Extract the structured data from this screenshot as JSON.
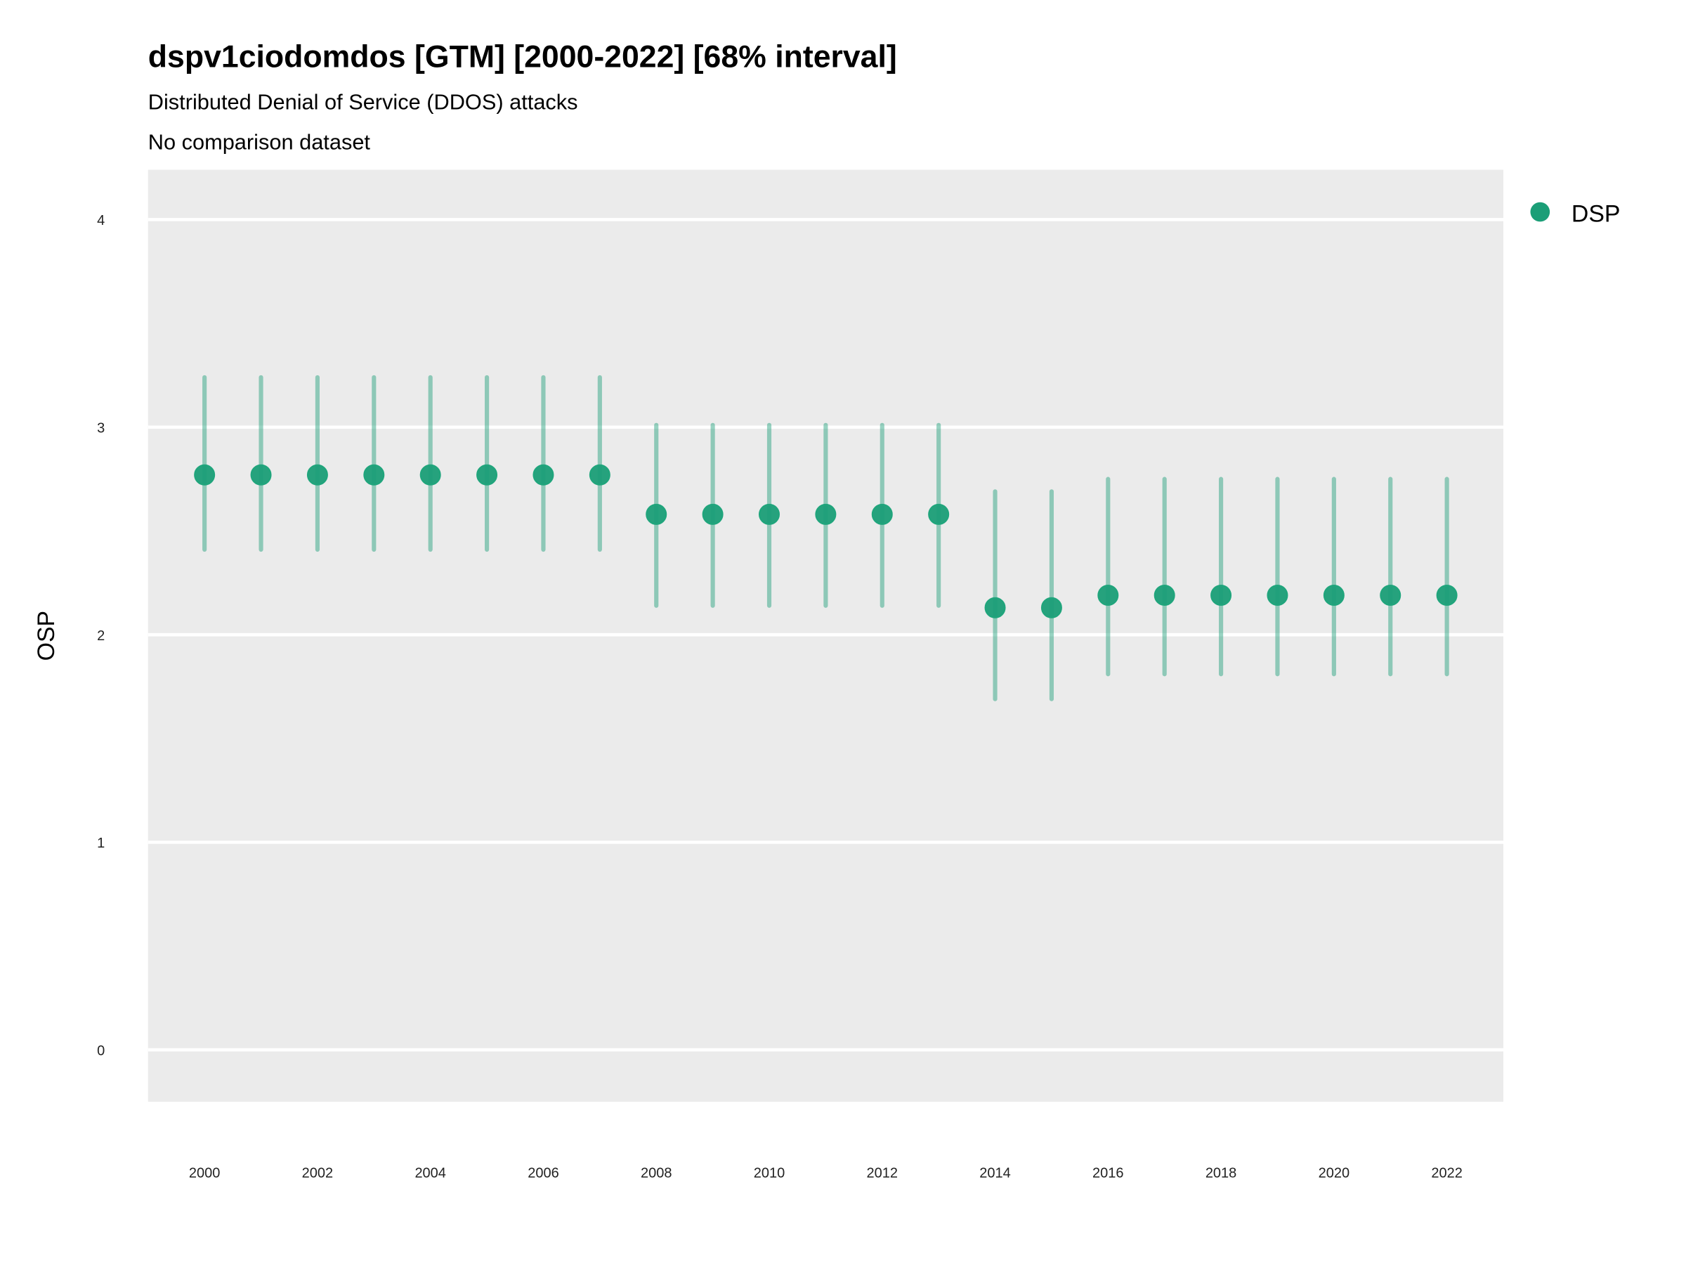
{
  "chart_data": {
    "type": "scatter",
    "title": "dspv1ciodomdos [GTM] [2000-2022] [68% interval]",
    "subtitle": "Distributed Denial of Service (DDOS) attacks",
    "caption": "No comparison dataset",
    "xlabel": "",
    "ylabel": "OSP",
    "xlim": [
      1999,
      2023
    ],
    "ylim": [
      -0.25,
      4.24
    ],
    "grid": true,
    "legend_position": "right",
    "x_ticks": [
      "2000",
      "2002",
      "2004",
      "2006",
      "2008",
      "2010",
      "2012",
      "2014",
      "2016",
      "2018",
      "2020",
      "2022"
    ],
    "y_ticks": [
      "0",
      "1",
      "2",
      "3",
      "4"
    ],
    "series": [
      {
        "name": "DSP",
        "color": "#1b9e77",
        "x": [
          2000,
          2001,
          2002,
          2003,
          2004,
          2005,
          2006,
          2007,
          2008,
          2009,
          2010,
          2011,
          2012,
          2013,
          2014,
          2015,
          2016,
          2017,
          2018,
          2019,
          2020,
          2021,
          2022
        ],
        "y": [
          2.77,
          2.77,
          2.77,
          2.77,
          2.77,
          2.77,
          2.77,
          2.77,
          2.58,
          2.58,
          2.58,
          2.58,
          2.58,
          2.58,
          2.13,
          2.13,
          2.19,
          2.19,
          2.19,
          2.19,
          2.19,
          2.19,
          2.19
        ],
        "lower": [
          2.41,
          2.41,
          2.41,
          2.41,
          2.41,
          2.41,
          2.41,
          2.41,
          2.14,
          2.14,
          2.14,
          2.14,
          2.14,
          2.14,
          1.69,
          1.69,
          1.81,
          1.81,
          1.81,
          1.81,
          1.81,
          1.81,
          1.81
        ],
        "upper": [
          3.24,
          3.24,
          3.24,
          3.24,
          3.24,
          3.24,
          3.24,
          3.24,
          3.01,
          3.01,
          3.01,
          3.01,
          3.01,
          3.01,
          2.69,
          2.69,
          2.75,
          2.75,
          2.75,
          2.75,
          2.75,
          2.75,
          2.75
        ]
      }
    ]
  }
}
